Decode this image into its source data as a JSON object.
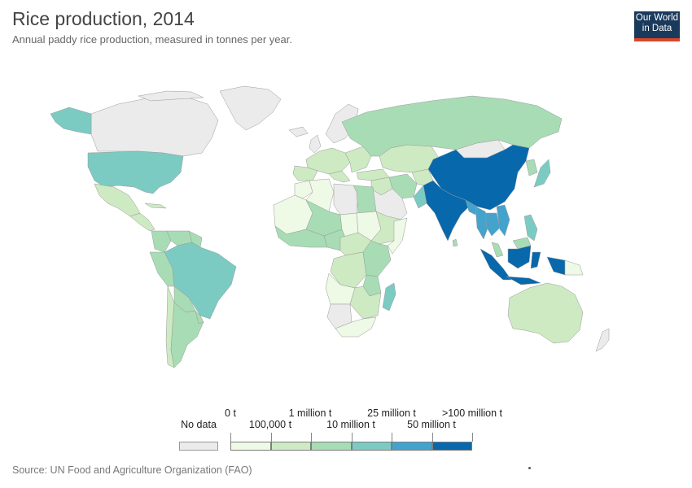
{
  "title": "Rice production, 2014",
  "subtitle": "Annual paddy rice production, measured in tonnes per year.",
  "logo": {
    "line1": "Our World",
    "line2": "in Data"
  },
  "source": "Source: UN Food and Agriculture Organization (FAO)",
  "legend": {
    "no_data_label": "No data",
    "no_data_color": "#ebebeb",
    "top_labels": [
      "0 t",
      "1 million t",
      "25 million t",
      ">100 million t"
    ],
    "bottom_labels": [
      "100,000 t",
      "10 million t",
      "50 million t"
    ],
    "bins": [
      {
        "range": "0 t – 100,000 t",
        "color": "#eef9e6"
      },
      {
        "range": "100,000 t – 1 million t",
        "color": "#cdeac3"
      },
      {
        "range": "1 million t – 10 million t",
        "color": "#a8dcb5"
      },
      {
        "range": "10 million t – 25 million t",
        "color": "#7bcbc3"
      },
      {
        "range": "25 million t – 50 million t",
        "color": "#43a3cc"
      },
      {
        "range": "50 million t – >100 million t",
        "color": "#0868ac"
      }
    ]
  },
  "map_colors": {
    "no_data": "#ebebeb",
    "bin1": "#eef9e6",
    "bin2": "#cdeac3",
    "bin3": "#a8dcb5",
    "bin4": "#7bcbc3",
    "bin5": "#43a3cc",
    "bin6": "#0868ac",
    "border": "#9a9a9a"
  }
}
